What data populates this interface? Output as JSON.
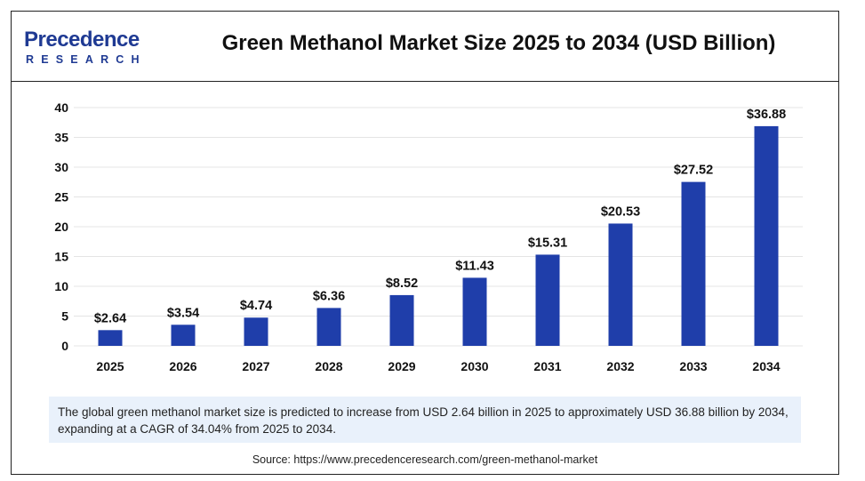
{
  "header": {
    "logo_line1": "Precedence",
    "logo_line2": "RESEARCH",
    "title": "Green Methanol Market Size 2025 to 2034 (USD Billion)"
  },
  "chart_data": {
    "type": "bar",
    "categories": [
      "2025",
      "2026",
      "2027",
      "2028",
      "2029",
      "2030",
      "2031",
      "2032",
      "2033",
      "2034"
    ],
    "values": [
      2.64,
      3.54,
      4.74,
      6.36,
      8.52,
      11.43,
      15.31,
      20.53,
      27.52,
      36.88
    ],
    "value_labels": [
      "$2.64",
      "$3.54",
      "$4.74",
      "$6.36",
      "$8.52",
      "$11.43",
      "$15.31",
      "$20.53",
      "$27.52",
      "$36.88"
    ],
    "ylim": [
      0,
      40
    ],
    "yticks": [
      0,
      5,
      10,
      15,
      20,
      25,
      30,
      35,
      40
    ],
    "grid": true,
    "bar_color": "#1f3eaa"
  },
  "caption": "The global green methanol market size is predicted to increase from USD 2.64 billion in 2025 to approximately USD 36.88 billion by 2034, expanding at a CAGR of 34.04% from 2025 to 2034.",
  "source": "Source: https://www.precedenceresearch.com/green-methanol-market"
}
